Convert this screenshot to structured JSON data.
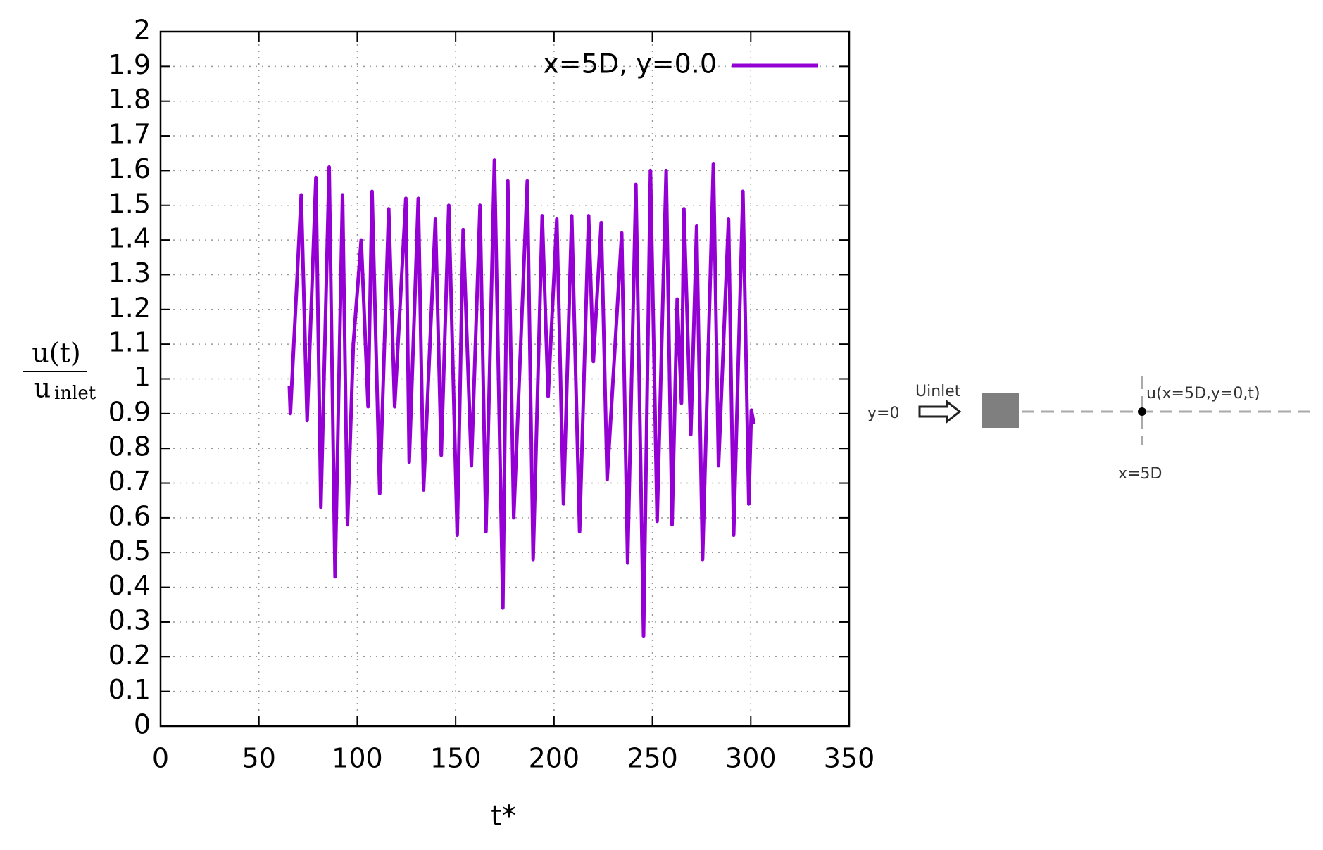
{
  "chart_data": {
    "type": "line",
    "xlabel": "t*",
    "ylabel": {
      "numerator": "u(t)",
      "denominator": "u",
      "denominator_subscript": "inlet"
    },
    "xlim": [
      0,
      350
    ],
    "xticks": [
      0,
      50,
      100,
      150,
      200,
      250,
      300,
      350
    ],
    "ylim": [
      0,
      2
    ],
    "yticks": [
      0,
      0.1,
      0.2,
      0.3,
      0.4,
      0.5,
      0.6,
      0.7,
      0.8,
      0.9,
      1,
      1.1,
      1.2,
      1.3,
      1.4,
      1.5,
      1.6,
      1.7,
      1.8,
      1.9,
      2
    ],
    "grid": true,
    "legend": "top-right",
    "x": [
      65.5,
      66,
      71.5,
      74.5,
      79,
      81.5,
      85.7,
      88.7,
      92.5,
      95,
      98,
      102,
      105.5,
      107.5,
      111.4,
      116,
      119,
      124.7,
      126.4,
      131,
      133.7,
      139.7,
      142.7,
      146.5,
      150.8,
      153.8,
      158,
      162.4,
      165.4,
      169.7,
      174,
      176.5,
      179.5,
      186.4,
      189.4,
      194,
      197,
      201.4,
      204.8,
      209,
      213,
      217.6,
      220,
      224,
      227,
      234.4,
      237.4,
      241.6,
      245.5,
      249,
      252.4,
      257,
      260,
      262.6,
      264.8,
      266,
      269.5,
      272.5,
      275.5,
      281,
      283.6,
      288.7,
      291.3,
      296,
      299,
      300.3,
      301.6
    ],
    "series": [
      {
        "name": "x=5D, y=0.0",
        "color": "#9400d3",
        "values": [
          0.98,
          0.9,
          1.53,
          0.88,
          1.58,
          0.63,
          1.61,
          0.43,
          1.53,
          0.58,
          1.1,
          1.4,
          0.92,
          1.54,
          0.67,
          1.49,
          0.92,
          1.52,
          0.76,
          1.52,
          0.68,
          1.46,
          0.78,
          1.5,
          0.55,
          1.43,
          0.75,
          1.5,
          0.56,
          1.63,
          0.34,
          1.57,
          0.6,
          1.57,
          0.48,
          1.47,
          0.95,
          1.46,
          0.64,
          1.47,
          0.56,
          1.47,
          1.05,
          1.45,
          0.71,
          1.42,
          0.47,
          1.56,
          0.26,
          1.6,
          0.59,
          1.6,
          0.58,
          1.23,
          0.93,
          1.49,
          0.84,
          1.44,
          0.48,
          1.62,
          0.75,
          1.46,
          0.55,
          1.54,
          0.64,
          0.91,
          0.87
        ]
      }
    ],
    "annotations": [
      "y=0",
      "Uinlet",
      "u(x=5D,y=0,t)",
      "x=5D"
    ]
  }
}
